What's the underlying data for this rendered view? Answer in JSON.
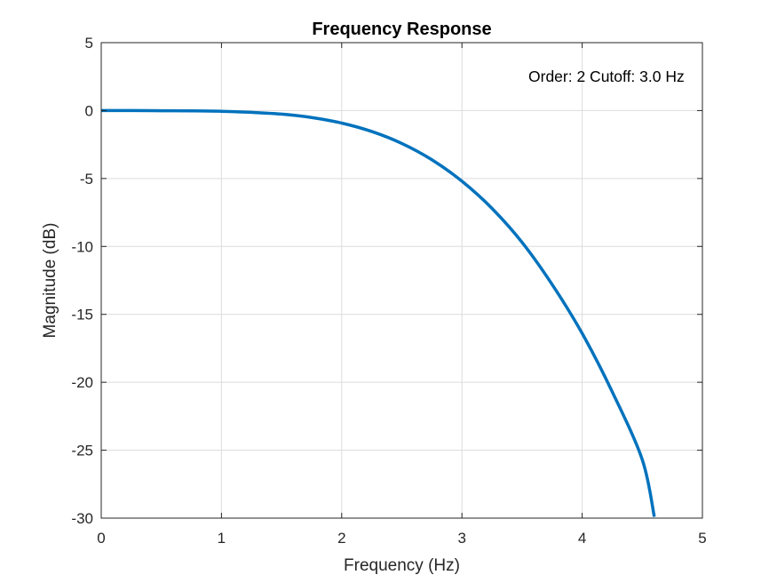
{
  "chart_data": {
    "type": "line",
    "title": "Frequency Response",
    "xlabel": "Frequency (Hz)",
    "ylabel": "Magnitude (dB)",
    "xlim": [
      0,
      5
    ],
    "ylim": [
      -30,
      5
    ],
    "xticks": [
      0,
      1,
      2,
      3,
      4,
      5
    ],
    "yticks": [
      5,
      0,
      -5,
      -10,
      -15,
      -20,
      -25,
      -30
    ],
    "xtick_labels": [
      "0",
      "1",
      "2",
      "3",
      "4",
      "5"
    ],
    "ytick_labels": [
      "5",
      "0",
      "-5",
      "-10",
      "-15",
      "-20",
      "-25",
      "-30"
    ],
    "grid": true,
    "annotation": "Order: 2 Cutoff: 3.0 Hz",
    "series": [
      {
        "color": "#0072BD",
        "x": [
          0,
          0.25,
          0.5,
          0.75,
          1.0,
          1.25,
          1.5,
          1.75,
          2.0,
          2.25,
          2.5,
          2.75,
          3.0,
          3.25,
          3.5,
          3.75,
          4.0,
          4.25,
          4.5,
          4.6
        ],
        "y": [
          0,
          0,
          -0.01,
          -0.02,
          -0.05,
          -0.13,
          -0.26,
          -0.51,
          -0.92,
          -1.54,
          -2.42,
          -3.62,
          -5.2,
          -7.2,
          -9.7,
          -12.8,
          -16.4,
          -20.7,
          -25.7,
          -29.9
        ]
      }
    ]
  }
}
